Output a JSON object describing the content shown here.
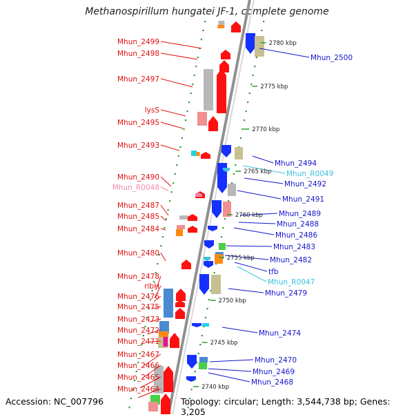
{
  "title": "Methanospirillum hungatei JF-1, complete genome",
  "footer": {
    "accession": "Accession: NC_007796",
    "topology": "Topology: circular; Length: 3,544,738 bp; Genes: 3,205"
  },
  "colors": {
    "gene_left": "#e01010",
    "gene_right": "#1414cc",
    "rna_left": "#f08ab0",
    "rna_right": "#3cc0e0",
    "backbone": "#909090",
    "ticks": "#2a9d2a",
    "cds_red": "#ff1010",
    "cds_blue": "#1530ff",
    "grey": "#b8b8b8",
    "khaki": "#c8c090",
    "pink": "#f09090",
    "steelblue": "#4a8ad0",
    "orange": "#ff8a10",
    "cyan": "#28d0e8",
    "green": "#48d048",
    "magenta": "#e01a8a"
  },
  "kbp_ticks": [
    {
      "kbp": 2780,
      "label": "2780 kbp"
    },
    {
      "kbp": 2775,
      "label": "2775 kbp"
    },
    {
      "kbp": 2770,
      "label": "2770 kbp"
    },
    {
      "kbp": 2765,
      "label": "2765 kbp"
    },
    {
      "kbp": 2760,
      "label": "2760 kbp"
    },
    {
      "kbp": 2755,
      "label": "2755 kbp"
    },
    {
      "kbp": 2750,
      "label": "2750 kbp"
    },
    {
      "kbp": 2745,
      "label": "2745 kbp"
    },
    {
      "kbp": 2740,
      "label": "2740 kbp"
    }
  ],
  "labels_left": [
    {
      "text": "Mhun_2499",
      "type": "gene"
    },
    {
      "text": "Mhun_2498",
      "type": "gene"
    },
    {
      "text": "Mhun_2497",
      "type": "gene"
    },
    {
      "text": "lysS",
      "type": "gene"
    },
    {
      "text": "Mhun_2495",
      "type": "gene"
    },
    {
      "text": "Mhun_2493",
      "type": "gene"
    },
    {
      "text": "Mhun_2490",
      "type": "gene"
    },
    {
      "text": "Mhun_R0048",
      "type": "rna"
    },
    {
      "text": "Mhun_2487",
      "type": "gene"
    },
    {
      "text": "Mhun_2485",
      "type": "gene"
    },
    {
      "text": "Mhun_2484",
      "type": "gene"
    },
    {
      "text": "Mhun_2480",
      "type": "gene"
    },
    {
      "text": "Mhun_2478",
      "type": "gene"
    },
    {
      "text": "ribH",
      "type": "gene"
    },
    {
      "text": "Mhun_2476",
      "type": "gene"
    },
    {
      "text": "Mhun_2475",
      "type": "gene"
    },
    {
      "text": "Mhun_2473",
      "type": "gene"
    },
    {
      "text": "Mhun_2472",
      "type": "gene"
    },
    {
      "text": "Mhun_2471",
      "type": "gene"
    },
    {
      "text": "Mhun_2467",
      "type": "gene"
    },
    {
      "text": "Mhun_2466",
      "type": "gene"
    },
    {
      "text": "Mhun_2465",
      "type": "gene"
    },
    {
      "text": "Mhun_2464",
      "type": "gene"
    }
  ],
  "labels_right": [
    {
      "text": "Mhun_2500",
      "type": "gene"
    },
    {
      "text": "Mhun_2494",
      "type": "gene"
    },
    {
      "text": "Mhun_R0049",
      "type": "rna"
    },
    {
      "text": "Mhun_2492",
      "type": "gene"
    },
    {
      "text": "Mhun_2491",
      "type": "gene"
    },
    {
      "text": "Mhun_2489",
      "type": "gene"
    },
    {
      "text": "Mhun_2488",
      "type": "gene"
    },
    {
      "text": "Mhun_2486",
      "type": "gene"
    },
    {
      "text": "Mhun_2483",
      "type": "gene"
    },
    {
      "text": "Mhun_2482",
      "type": "gene"
    },
    {
      "text": "tfb",
      "type": "gene"
    },
    {
      "text": "Mhun_R0047",
      "type": "rna"
    },
    {
      "text": "Mhun_2479",
      "type": "gene"
    },
    {
      "text": "Mhun_2474",
      "type": "gene"
    },
    {
      "text": "Mhun_2470",
      "type": "gene"
    },
    {
      "text": "Mhun_2469",
      "type": "gene"
    },
    {
      "text": "Mhun_2468",
      "type": "gene"
    }
  ]
}
